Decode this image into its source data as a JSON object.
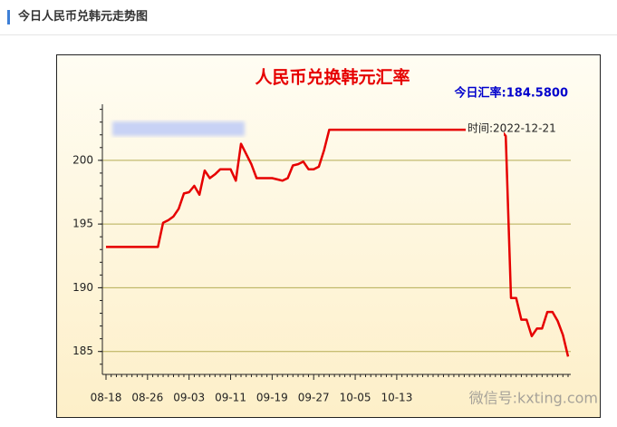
{
  "header": {
    "title": "今日人民币兑韩元走势图"
  },
  "chart_data": {
    "type": "line",
    "title": "人民币兑换韩元汇率",
    "subtitle": "今日汇率:184.5800",
    "annotation": "时间:2022-12-21",
    "watermark": "微信号:kxting.com",
    "categories": [
      "08-18",
      null,
      null,
      null,
      null,
      null,
      null,
      null,
      "08-26",
      null,
      null,
      null,
      null,
      null,
      null,
      null,
      "09-03",
      null,
      null,
      null,
      null,
      null,
      null,
      null,
      "09-11",
      null,
      null,
      null,
      null,
      null,
      null,
      null,
      "09-19",
      null,
      null,
      null,
      null,
      null,
      null,
      null,
      "09-27",
      null,
      null,
      null,
      null,
      null,
      null,
      null,
      "10-05",
      null,
      null,
      null,
      null,
      null,
      null,
      null,
      "10-13",
      null,
      null,
      null,
      null,
      null,
      null,
      null,
      null,
      null,
      null,
      null,
      null,
      null,
      null,
      null,
      null,
      null,
      null,
      null,
      null,
      null,
      null,
      null,
      null,
      null,
      null,
      null,
      null,
      null,
      null,
      null,
      null,
      null
    ],
    "series": [
      {
        "color": "#e60000",
        "values": [
          193.2,
          193.2,
          193.2,
          193.2,
          193.2,
          193.2,
          193.2,
          193.2,
          193.2,
          193.2,
          193.2,
          195.1,
          195.3,
          195.6,
          196.2,
          197.4,
          197.5,
          198.0,
          197.3,
          199.2,
          198.6,
          198.9,
          199.3,
          199.3,
          199.3,
          198.4,
          201.3,
          200.5,
          199.7,
          198.6,
          198.6,
          198.6,
          198.6,
          198.5,
          198.4,
          198.6,
          199.6,
          199.7,
          199.9,
          199.3,
          199.3,
          199.5,
          200.8,
          202.4,
          202.4,
          202.4,
          202.4,
          202.4,
          202.4,
          202.4,
          202.4,
          202.4,
          202.4,
          202.4,
          202.4,
          202.4,
          202.4,
          202.4,
          202.4,
          202.4,
          202.4,
          202.4,
          202.4,
          202.4,
          202.4,
          202.4,
          202.4,
          202.4,
          202.4,
          202.4,
          202.4,
          202.4,
          202.4,
          202.4,
          202.4,
          202.4,
          202.4,
          201.9,
          189.2,
          189.2,
          187.5,
          187.5,
          186.2,
          186.8,
          186.8,
          188.1,
          188.1,
          187.4,
          186.3,
          184.6
        ]
      }
    ],
    "ylim": [
      183.2,
      204.4
    ],
    "yticks": [
      185,
      190,
      195,
      200
    ],
    "grid": true,
    "grid_color": "#b5ad55"
  }
}
